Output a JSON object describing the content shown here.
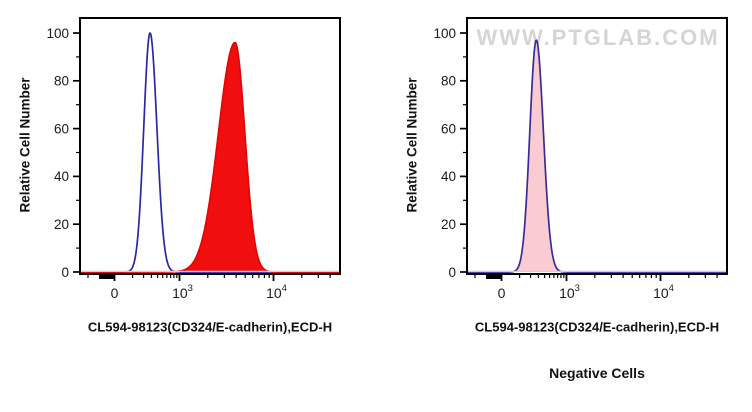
{
  "figure": {
    "background": "#ffffff",
    "watermark_text": "WWW.PTGLAB.COM",
    "colors": {
      "axis": "#000000",
      "tick_label": "#1a1a1a",
      "baseline_pink": "#e9c2d8",
      "watermark_gray": "#d5d5d5"
    }
  },
  "chart_data": [
    {
      "type": "area",
      "panel": "cd324-stained",
      "title": "",
      "xlabel": "CL594-98123(CD324/E-cadherin),ECD-H",
      "ylabel": "Relative Cell Number",
      "caption": "",
      "watermark": false,
      "x_scale": "biexponential-log",
      "x_major_ticks": [
        {
          "value": 0,
          "label": "0"
        },
        {
          "value": 1000,
          "label": "10^3"
        },
        {
          "value": 10000,
          "label": "10^4"
        }
      ],
      "xlim_right": 50000,
      "ylim": [
        0,
        100
      ],
      "y_major_ticks": [
        0,
        20,
        40,
        60,
        80,
        100
      ],
      "y_minor_ticks": [
        10,
        30,
        50,
        70,
        90
      ],
      "grid": false,
      "legend": "none",
      "series": [
        {
          "name": "open-blue-control-histogram",
          "style": "open",
          "stroke": "#2a28a4",
          "fill": "none",
          "peak_x": 280,
          "peak_height": 100,
          "base_x": [
            90,
            700
          ]
        },
        {
          "name": "red-filled-stained-histogram",
          "style": "filled",
          "stroke": "#e30505",
          "fill": "#f10e0e",
          "peak_x": 3900,
          "peak_height": 96,
          "base_x": [
            1150,
            8000
          ]
        }
      ]
    },
    {
      "type": "area",
      "panel": "negative-cells",
      "title": "",
      "xlabel": "CL594-98123(CD324/E-cadherin),ECD-H",
      "ylabel": "Relative Cell Number",
      "caption": "Negative Cells",
      "watermark": true,
      "x_scale": "biexponential-log",
      "x_major_ticks": [
        {
          "value": 0,
          "label": "0"
        },
        {
          "value": 1000,
          "label": "10^3"
        },
        {
          "value": 10000,
          "label": "10^4"
        }
      ],
      "xlim_right": 50000,
      "ylim": [
        0,
        100
      ],
      "y_major_ticks": [
        0,
        20,
        40,
        60,
        80,
        100
      ],
      "y_minor_ticks": [
        10,
        30,
        50,
        70,
        90
      ],
      "grid": false,
      "legend": "none",
      "series": [
        {
          "name": "pink-filled-overlap-histogram",
          "style": "filled",
          "stroke": "#3a2c96",
          "fill": "#f9cbd2",
          "peak_x": 270,
          "peak_height": 97,
          "base_x": [
            80,
            700
          ]
        }
      ]
    }
  ]
}
